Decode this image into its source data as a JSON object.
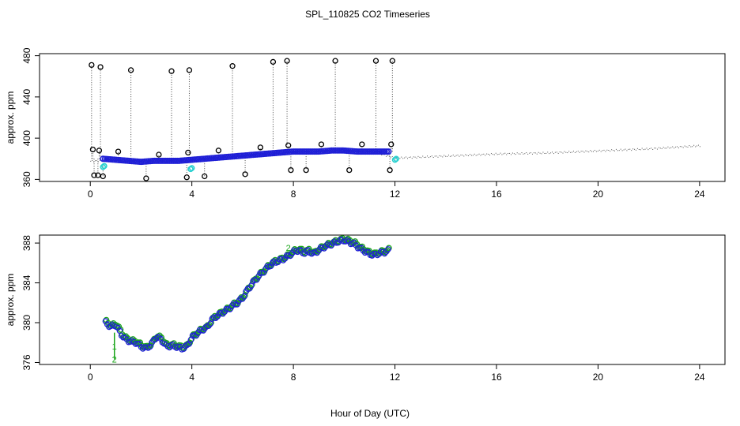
{
  "title": "SPL_110825  CO2 Timeseries",
  "xlabel": "Hour of Day (UTC)",
  "colors": {
    "axis": "#000000",
    "outlier": "#000000",
    "smoothed": "#1f1fd6",
    "flagged": "#28d0d0",
    "raw_green": "#1aa51a",
    "raw_dots": "#555555"
  },
  "chart_data": [
    {
      "type": "scatter",
      "panel": "top",
      "ylabel": "approx. ppm",
      "xlim": [
        -2,
        25
      ],
      "ylim": [
        358,
        482
      ],
      "xticks": [
        0,
        4,
        8,
        12,
        16,
        20,
        24
      ],
      "yticks": [
        360,
        400,
        440,
        480
      ],
      "raw_dotted_trend": {
        "x": [
          0,
          1,
          2,
          3,
          4,
          5,
          6,
          7,
          8,
          9,
          10,
          11,
          12,
          14,
          16,
          18,
          20,
          22,
          24
        ],
        "y": [
          378,
          379,
          378,
          378,
          378,
          381,
          383,
          385,
          387,
          388,
          388,
          388,
          381,
          383,
          385,
          386,
          388,
          390,
          393
        ]
      },
      "smoothed_series": {
        "x": [
          0.5,
          1.0,
          1.5,
          2.0,
          2.5,
          3.0,
          3.5,
          4.0,
          4.5,
          5.0,
          5.5,
          6.0,
          6.5,
          7.0,
          7.5,
          8.0,
          8.5,
          9.0,
          9.5,
          10.0,
          10.5,
          11.0,
          11.5,
          11.8
        ],
        "y": [
          380,
          379,
          378,
          377,
          378,
          378,
          378,
          379,
          380,
          381,
          382,
          383,
          384,
          385,
          386,
          387,
          387,
          387,
          388,
          388,
          387,
          387,
          387,
          387
        ]
      },
      "outliers": {
        "x": [
          0.05,
          0.1,
          0.15,
          0.3,
          0.35,
          0.4,
          0.5,
          1.1,
          1.6,
          2.2,
          2.7,
          3.2,
          3.8,
          3.85,
          3.9,
          4.5,
          5.05,
          5.6,
          6.1,
          6.7,
          7.2,
          7.75,
          7.8,
          7.9,
          8.5,
          9.1,
          9.65,
          10.2,
          10.7,
          11.25,
          11.8,
          11.85,
          11.9
        ],
        "y": [
          471,
          389,
          364,
          364,
          388,
          469,
          363,
          387,
          466,
          361,
          384,
          465,
          362,
          386,
          466,
          363,
          388,
          470,
          365,
          391,
          474,
          475,
          393,
          369,
          369,
          394,
          475,
          369,
          394,
          475,
          369,
          394,
          475
        ]
      },
      "flagged": {
        "x": [
          0.5,
          0.55,
          3.95,
          4.0,
          12.0,
          12.05
        ],
        "y": [
          372,
          373,
          370,
          371,
          379,
          380
        ]
      }
    },
    {
      "type": "scatter",
      "panel": "bottom",
      "ylabel": "approx. ppm",
      "xlim": [
        -2,
        25
      ],
      "ylim": [
        375.8,
        388.8
      ],
      "xticks": [
        0,
        4,
        8,
        12,
        16,
        20,
        24
      ],
      "yticks": [
        376,
        380,
        384,
        388
      ],
      "annotation_markers": [
        "1",
        "2"
      ],
      "series": [
        {
          "name": "detail",
          "x": [
            0.6,
            0.8,
            1.0,
            1.2,
            1.4,
            1.6,
            1.8,
            2.0,
            2.2,
            2.4,
            2.6,
            2.8,
            3.0,
            3.2,
            3.4,
            3.6,
            3.8,
            4.0,
            4.2,
            4.4,
            4.6,
            4.8,
            5.0,
            5.2,
            5.4,
            5.6,
            5.8,
            6.0,
            6.2,
            6.4,
            6.6,
            6.8,
            7.0,
            7.2,
            7.4,
            7.6,
            7.8,
            8.0,
            8.2,
            8.4,
            8.6,
            8.8,
            9.0,
            9.2,
            9.4,
            9.6,
            9.8,
            10.0,
            10.2,
            10.4,
            10.6,
            10.8,
            11.0,
            11.2,
            11.4,
            11.6,
            11.8
          ],
          "y": [
            380.0,
            379.6,
            379.8,
            378.9,
            378.3,
            378.1,
            378.0,
            377.6,
            377.4,
            377.8,
            378.6,
            378.3,
            377.6,
            377.7,
            377.6,
            377.4,
            377.6,
            378.5,
            378.9,
            379.3,
            379.5,
            380.3,
            380.7,
            381.0,
            381.3,
            381.7,
            382.0,
            382.5,
            383.3,
            384.0,
            384.6,
            385.1,
            385.6,
            386.0,
            386.2,
            386.4,
            386.7,
            387.1,
            387.3,
            387.0,
            387.2,
            386.9,
            387.3,
            387.6,
            387.8,
            388.0,
            388.2,
            388.3,
            388.1,
            387.9,
            387.5,
            387.2,
            386.9,
            386.8,
            387.0,
            387.1,
            387.3
          ]
        }
      ],
      "spike": {
        "x": [
          0.95,
          0.95
        ],
        "y": [
          379.0,
          376.3
        ]
      }
    }
  ]
}
